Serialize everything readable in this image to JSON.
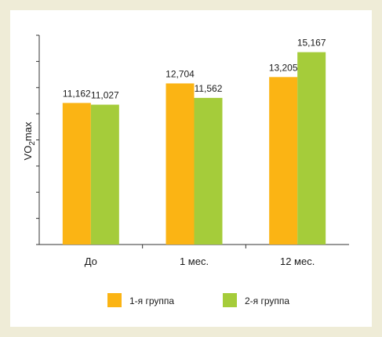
{
  "chart_data": {
    "type": "bar",
    "ylabel_main": "VO",
    "ylabel_sub": "2",
    "ylabel_tail": "max",
    "categories": [
      "До",
      "1 мес.",
      "12 мес."
    ],
    "series": [
      {
        "name": "1-я группа",
        "values": [
          11162,
          12704,
          13205
        ],
        "labels": [
          "11,162",
          "12,704",
          "13,205"
        ],
        "color": "#fbb414"
      },
      {
        "name": "2-я группа",
        "values": [
          11027,
          11562,
          15167
        ],
        "labels": [
          "11,027",
          "11,562",
          "15,167"
        ],
        "color": "#a5cc3a"
      }
    ],
    "ylim": [
      0,
      16500
    ],
    "grid": false,
    "legend_position": "bottom"
  }
}
